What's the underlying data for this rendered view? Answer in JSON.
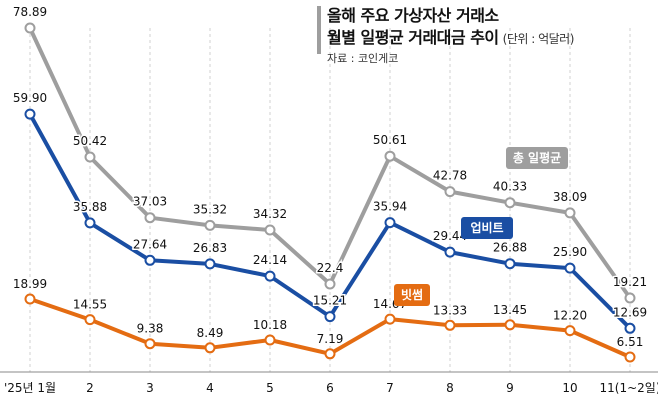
{
  "header": {
    "title_line1": "올해 주요 가상자산 거래소",
    "title_line2": "월별 일평균 거래대금 추이",
    "unit": "(단위 : 억달러)",
    "source": "자료 : 코인게코"
  },
  "chart_data": {
    "type": "line",
    "categories": [
      "'25년 1월",
      "2",
      "3",
      "4",
      "5",
      "6",
      "7",
      "8",
      "9",
      "10",
      "11(1~2일)"
    ],
    "series": [
      {
        "name": "총 일평균",
        "values": [
          78.89,
          50.42,
          37.03,
          35.32,
          34.32,
          22.4,
          50.61,
          42.78,
          40.33,
          38.09,
          19.21
        ],
        "labels": [
          "78.89",
          "50.42",
          "37.03",
          "35.32",
          "34.32",
          "22.4",
          "50.61",
          "42.78",
          "40.33",
          "38.09",
          "19.21"
        ],
        "color": "#9e9e9e"
      },
      {
        "name": "업비트",
        "values": [
          59.9,
          35.88,
          27.64,
          26.83,
          24.14,
          15.21,
          35.94,
          29.44,
          26.88,
          25.9,
          12.69
        ],
        "labels": [
          "59.90",
          "35.88",
          "27.64",
          "26.83",
          "24.14",
          "15.21",
          "35.94",
          "29.44",
          "26.88",
          "25.90",
          "12.69"
        ],
        "color": "#1a4ea3"
      },
      {
        "name": "빗썸",
        "values": [
          18.99,
          14.55,
          9.38,
          8.49,
          10.18,
          7.19,
          14.67,
          13.33,
          13.45,
          12.2,
          6.51
        ],
        "labels": [
          "18.99",
          "14.55",
          "9.38",
          "8.49",
          "10.18",
          "7.19",
          "14.67",
          "13.33",
          "13.45",
          "12.20",
          "6.51"
        ],
        "color": "#e46c12"
      }
    ],
    "grid": "vertical",
    "xlabel": "",
    "ylabel": ""
  }
}
